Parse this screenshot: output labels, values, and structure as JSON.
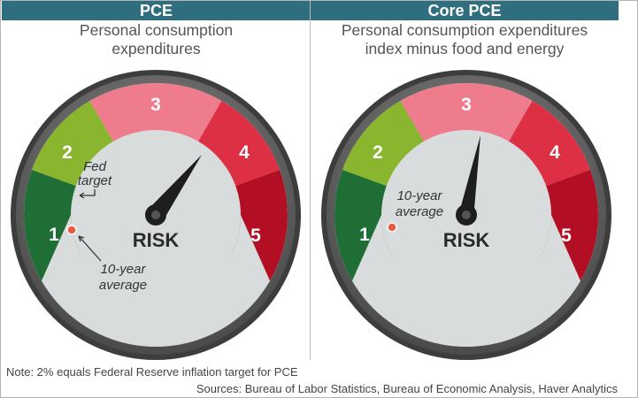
{
  "panels": [
    {
      "title": "PCE",
      "subtitle_line1": "Personal consumption",
      "subtitle_line2": "expenditures",
      "risk_label": "RISK",
      "zones": [
        "1",
        "2",
        "3",
        "4",
        "5"
      ],
      "annotations": {
        "fed_line1": "Fed",
        "fed_line2": "target",
        "avg_line1": "10-year",
        "avg_line2": "average"
      }
    },
    {
      "title": "Core PCE",
      "subtitle_line1": "Personal consumption expenditures",
      "subtitle_line2": "index minus food and energy",
      "risk_label": "RISK",
      "zones": [
        "1",
        "2",
        "3",
        "4",
        "5"
      ],
      "annotations": {
        "avg_line1": "10-year",
        "avg_line2": "average"
      }
    }
  ],
  "zone_colors": [
    "#1e6e35",
    "#8ab62f",
    "#ef7c8c",
    "#dd3045",
    "#b30f24"
  ],
  "footer": {
    "note": "Note: 2% equals Federal Reserve inflation target for PCE",
    "sources": "Sources: Bureau of Labor Statistics, Bureau of Economic Analysis, Haver Analytics"
  }
}
